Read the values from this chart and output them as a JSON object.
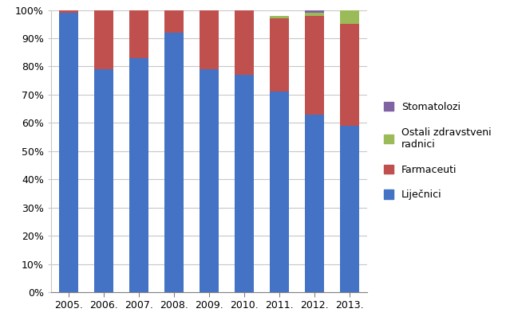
{
  "years": [
    "2005.",
    "2006.",
    "2007.",
    "2008.",
    "2009.",
    "2010.",
    "2011.",
    "2012.",
    "2013."
  ],
  "lijecnici": [
    99,
    79,
    83,
    92,
    79,
    77,
    71,
    63,
    59
  ],
  "farmaceuti": [
    1,
    21,
    17,
    8,
    21,
    23,
    26,
    35,
    36
  ],
  "ostali": [
    0,
    0,
    0,
    0,
    0,
    0,
    1,
    1,
    5
  ],
  "stomatolozi": [
    0,
    0,
    0,
    0,
    0,
    0,
    0,
    1,
    0
  ],
  "color_lijecnici": "#4472C4",
  "color_farmaceuti": "#C0504D",
  "color_ostali": "#9BBB59",
  "color_stomatolozi": "#8064A2",
  "ylim": [
    0,
    100
  ],
  "yticks": [
    0,
    10,
    20,
    30,
    40,
    50,
    60,
    70,
    80,
    90,
    100
  ],
  "background_color": "#ffffff",
  "grid_color": "#c8c8c8",
  "bar_width": 0.55
}
